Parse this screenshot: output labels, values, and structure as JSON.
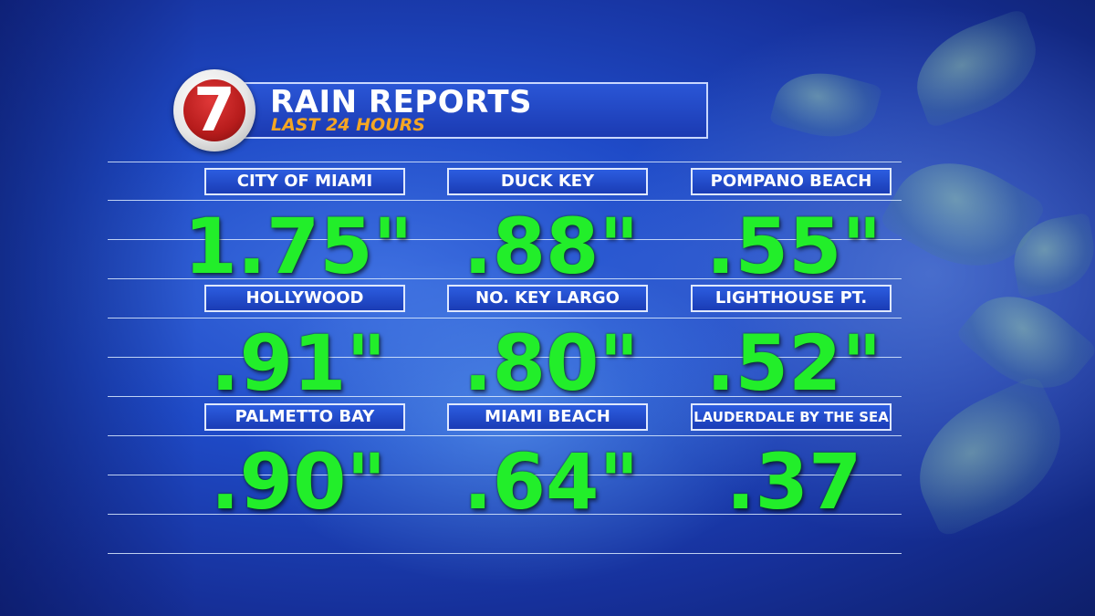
{
  "header": {
    "logo_number": "7",
    "title": "RAIN REPORTS",
    "subtitle": "LAST 24 HOURS"
  },
  "colors": {
    "value_text": "#22ee2a",
    "subtitle_text": "#f5a623",
    "label_bg": "#1f46c5",
    "logo_red": "#b71c1c"
  },
  "reports": [
    {
      "location": "CITY OF MIAMI",
      "amount": "1.75\""
    },
    {
      "location": "DUCK KEY",
      "amount": ".88\""
    },
    {
      "location": "POMPANO BEACH",
      "amount": ".55\""
    },
    {
      "location": "HOLLYWOOD",
      "amount": ".91\""
    },
    {
      "location": "NO. KEY LARGO",
      "amount": ".80\""
    },
    {
      "location": "LIGHTHOUSE PT.",
      "amount": ".52\""
    },
    {
      "location": "PALMETTO BAY",
      "amount": ".90\""
    },
    {
      "location": "MIAMI BEACH",
      "amount": ".64\""
    },
    {
      "location": "LAUDERDALE BY THE SEA",
      "amount": ".37"
    }
  ]
}
